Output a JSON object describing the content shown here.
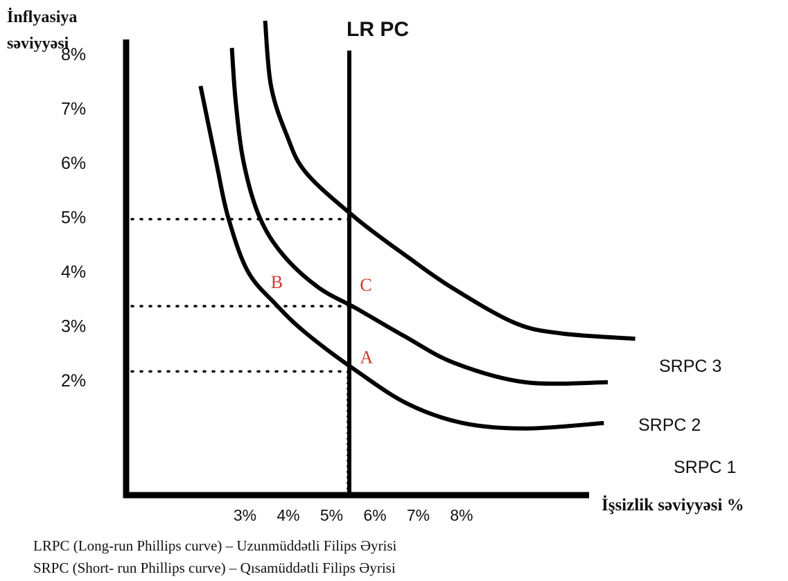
{
  "chart_data": {
    "type": "line",
    "title": "",
    "ylabel_lines": [
      "İnflyasiya",
      "səviyyəsi"
    ],
    "xlabel": "İşsizlik səviyyəsi %",
    "y_ticks": [
      "8%",
      "7%",
      "6%",
      "5%",
      "4%",
      "3%",
      "2%"
    ],
    "y_tick_values": [
      8,
      7,
      6,
      5,
      4,
      3,
      2
    ],
    "x_ticks": [
      "3%",
      "4%",
      "5%",
      "6%",
      "7%",
      "8%"
    ],
    "x_tick_values": [
      3,
      4,
      5,
      6,
      7,
      8
    ],
    "lrpc": {
      "label": "LR PC",
      "unemployment": 6
    },
    "series": [
      {
        "name": "SRPC 1",
        "points": [
          [
            1.9,
            7.4
          ],
          [
            2.3,
            6.0
          ],
          [
            2.6,
            5.0
          ],
          [
            3.1,
            4.0
          ],
          [
            3.8,
            3.4
          ],
          [
            4.6,
            2.85
          ],
          [
            5.9,
            2.15
          ],
          [
            7.2,
            1.55
          ],
          [
            8.6,
            1.2
          ],
          [
            10.2,
            1.1
          ],
          [
            12.2,
            1.2
          ]
        ]
      },
      {
        "name": "SRPC 2",
        "points": [
          [
            2.7,
            8.1
          ],
          [
            2.8,
            7.1
          ],
          [
            3.0,
            6.0
          ],
          [
            3.4,
            5.0
          ],
          [
            4.0,
            4.3
          ],
          [
            4.9,
            3.7
          ],
          [
            5.9,
            3.3
          ],
          [
            7.1,
            2.8
          ],
          [
            8.4,
            2.3
          ],
          [
            10.2,
            1.95
          ],
          [
            12.3,
            1.95
          ]
        ]
      },
      {
        "name": "SRPC 3",
        "points": [
          [
            3.55,
            8.6
          ],
          [
            3.7,
            7.4
          ],
          [
            4.1,
            6.5
          ],
          [
            4.6,
            5.8
          ],
          [
            5.9,
            4.95
          ],
          [
            7.2,
            4.25
          ],
          [
            8.3,
            3.7
          ],
          [
            9.9,
            3.05
          ],
          [
            11.1,
            2.85
          ],
          [
            13.0,
            2.75
          ]
        ]
      }
    ],
    "reference_lines": [
      {
        "inflation": 4.95,
        "from_unemployment": 0,
        "to_unemployment": 6
      },
      {
        "inflation": 3.35,
        "from_unemployment": 0,
        "to_unemployment": 6
      },
      {
        "inflation": 2.15,
        "from_unemployment": 0,
        "to_unemployment": 6
      }
    ],
    "point_labels": [
      {
        "text": "B",
        "unemployment": 3.8,
        "inflation": 3.35,
        "color": "#d23a2a"
      },
      {
        "text": "C",
        "unemployment": 5.9,
        "inflation": 3.35,
        "color": "#d23a2a"
      },
      {
        "text": "A",
        "unemployment": 5.9,
        "inflation": 2.15,
        "color": "#d23a2a"
      }
    ],
    "grid": false,
    "legend": "none",
    "colors": {
      "curves": "#000000",
      "axes": "#000000",
      "labels": "#111111",
      "point_labels": "#d23a2a"
    }
  },
  "notes": [
    "LRPC (Long-run Phillips curve) – Uzunmüddətli Filips Əyrisi",
    "SRPC (Short- run Phillips curve) – Qısamüddətli Filips Əyrisi"
  ]
}
